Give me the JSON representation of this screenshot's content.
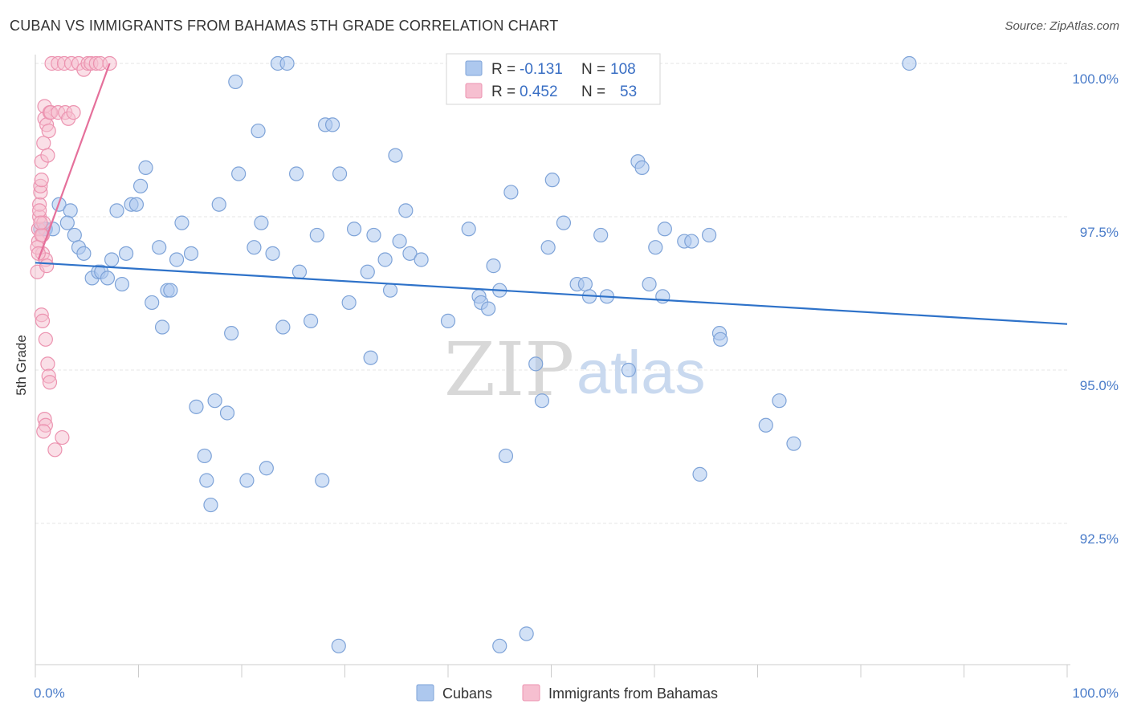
{
  "header": {
    "title": "CUBAN VS IMMIGRANTS FROM BAHAMAS 5TH GRADE CORRELATION CHART",
    "source": "Source: ZipAtlas.com"
  },
  "watermark": {
    "zip": "ZIP",
    "atlas": "atlas"
  },
  "colors": {
    "blue_fill": "#adc8ee",
    "blue_stroke": "#7ea3d8",
    "blue_line": "#2e72c9",
    "pink_fill": "#f6bfd0",
    "pink_stroke": "#ec93b0",
    "pink_line": "#e5709b",
    "grid": "#e5e5e5",
    "axis_text": "#4a7cc9"
  },
  "legend": {
    "rows": [
      {
        "r_label": "R =",
        "r_value": "-0.131",
        "n_label": "N =",
        "n_value": "108"
      },
      {
        "r_label": "R =",
        "r_value": "0.452",
        "n_label": "N =",
        "n_value": "53"
      }
    ]
  },
  "bottom_legend": {
    "cubans": "Cubans",
    "bahamas": "Immigrants from Bahamas"
  },
  "chart_data": {
    "type": "scatter",
    "title": "CUBAN VS IMMIGRANTS FROM BAHAMAS 5TH GRADE CORRELATION CHART",
    "xlabel": "",
    "ylabel": "5th Grade",
    "xlim": [
      0,
      100
    ],
    "ylim": [
      90.0,
      100.4
    ],
    "x_tick_labels": [
      "0.0%",
      "100.0%"
    ],
    "y_ticks": [
      92.5,
      95.0,
      97.5,
      100.0
    ],
    "y_tick_labels": [
      "92.5%",
      "95.0%",
      "97.5%",
      "100.0%"
    ],
    "series": [
      {
        "name": "Cubans",
        "R": -0.131,
        "N": 108,
        "trend": {
          "x": [
            0,
            100
          ],
          "y": [
            96.75,
            95.75
          ]
        },
        "points": [
          [
            0.5,
            97.3
          ],
          [
            0.9,
            97.3
          ],
          [
            1.0,
            97.3
          ],
          [
            1.7,
            97.3
          ],
          [
            2.3,
            97.7
          ],
          [
            3.4,
            97.6
          ],
          [
            3.1,
            97.4
          ],
          [
            3.8,
            97.2
          ],
          [
            4.2,
            97.0
          ],
          [
            4.7,
            96.9
          ],
          [
            5.5,
            96.5
          ],
          [
            6.1,
            96.6
          ],
          [
            6.4,
            96.6
          ],
          [
            7.0,
            96.5
          ],
          [
            7.4,
            96.8
          ],
          [
            7.9,
            97.6
          ],
          [
            8.4,
            96.4
          ],
          [
            8.8,
            96.9
          ],
          [
            9.3,
            97.7
          ],
          [
            9.8,
            97.7
          ],
          [
            10.2,
            98.0
          ],
          [
            10.7,
            98.3
          ],
          [
            11.3,
            96.1
          ],
          [
            12.0,
            97.0
          ],
          [
            12.3,
            95.7
          ],
          [
            12.8,
            96.3
          ],
          [
            13.1,
            96.3
          ],
          [
            13.7,
            96.8
          ],
          [
            14.2,
            97.4
          ],
          [
            15.1,
            96.9
          ],
          [
            15.6,
            94.4
          ],
          [
            16.4,
            93.6
          ],
          [
            16.6,
            93.2
          ],
          [
            17.0,
            92.8
          ],
          [
            17.4,
            94.5
          ],
          [
            17.8,
            97.7
          ],
          [
            18.6,
            94.3
          ],
          [
            19.0,
            95.6
          ],
          [
            19.4,
            99.7
          ],
          [
            19.7,
            98.2
          ],
          [
            20.5,
            93.2
          ],
          [
            21.2,
            97.0
          ],
          [
            21.6,
            98.9
          ],
          [
            21.9,
            97.4
          ],
          [
            22.4,
            93.4
          ],
          [
            23.0,
            96.9
          ],
          [
            23.5,
            100.0
          ],
          [
            24.0,
            95.7
          ],
          [
            24.4,
            100.0
          ],
          [
            25.3,
            98.2
          ],
          [
            25.6,
            96.6
          ],
          [
            26.7,
            95.8
          ],
          [
            27.3,
            97.2
          ],
          [
            27.8,
            93.2
          ],
          [
            28.1,
            99.0
          ],
          [
            28.8,
            99.0
          ],
          [
            29.5,
            98.2
          ],
          [
            30.4,
            96.1
          ],
          [
            30.9,
            97.3
          ],
          [
            32.2,
            96.6
          ],
          [
            32.5,
            95.2
          ],
          [
            32.8,
            97.2
          ],
          [
            33.9,
            96.8
          ],
          [
            34.4,
            96.3
          ],
          [
            34.9,
            98.5
          ],
          [
            35.3,
            97.1
          ],
          [
            35.9,
            97.6
          ],
          [
            36.3,
            96.9
          ],
          [
            37.4,
            96.8
          ],
          [
            40.0,
            95.8
          ],
          [
            42.0,
            97.3
          ],
          [
            43.0,
            96.2
          ],
          [
            43.2,
            96.1
          ],
          [
            43.9,
            96.0
          ],
          [
            44.4,
            96.7
          ],
          [
            45.0,
            96.3
          ],
          [
            45.6,
            93.6
          ],
          [
            46.1,
            97.9
          ],
          [
            48.5,
            95.1
          ],
          [
            49.1,
            94.5
          ],
          [
            49.7,
            97.0
          ],
          [
            50.1,
            98.1
          ],
          [
            51.2,
            97.4
          ],
          [
            52.5,
            96.4
          ],
          [
            53.3,
            96.4
          ],
          [
            53.7,
            96.2
          ],
          [
            54.8,
            97.2
          ],
          [
            55.4,
            96.2
          ],
          [
            57.5,
            95.0
          ],
          [
            58.4,
            98.4
          ],
          [
            58.8,
            98.3
          ],
          [
            59.5,
            96.4
          ],
          [
            60.1,
            97.0
          ],
          [
            60.8,
            96.2
          ],
          [
            61.0,
            97.3
          ],
          [
            62.9,
            97.1
          ],
          [
            63.6,
            97.1
          ],
          [
            64.4,
            93.3
          ],
          [
            65.3,
            97.2
          ],
          [
            66.3,
            95.6
          ],
          [
            66.4,
            95.5
          ],
          [
            70.8,
            94.1
          ],
          [
            72.1,
            94.5
          ],
          [
            73.5,
            93.8
          ],
          [
            84.7,
            100.0
          ],
          [
            29.4,
            90.5
          ],
          [
            45.0,
            90.5
          ],
          [
            47.6,
            90.7
          ]
        ]
      },
      {
        "name": "Immigrants from Bahamas",
        "R": 0.452,
        "N": 53,
        "trend": {
          "x": [
            0.3,
            7.2
          ],
          "y": [
            96.8,
            100.0
          ]
        },
        "points": [
          [
            0.2,
            96.6
          ],
          [
            0.3,
            97.1
          ],
          [
            0.3,
            97.3
          ],
          [
            0.4,
            97.5
          ],
          [
            0.4,
            97.7
          ],
          [
            0.5,
            97.9
          ],
          [
            0.5,
            98.0
          ],
          [
            0.6,
            98.1
          ],
          [
            0.6,
            98.4
          ],
          [
            0.7,
            96.9
          ],
          [
            0.7,
            97.2
          ],
          [
            0.8,
            97.4
          ],
          [
            0.8,
            98.7
          ],
          [
            0.9,
            99.1
          ],
          [
            0.9,
            99.3
          ],
          [
            1.0,
            96.8
          ],
          [
            1.1,
            96.7
          ],
          [
            1.1,
            99.0
          ],
          [
            1.2,
            98.5
          ],
          [
            1.3,
            98.9
          ],
          [
            1.4,
            99.2
          ],
          [
            1.5,
            99.2
          ],
          [
            0.6,
            95.9
          ],
          [
            0.7,
            95.8
          ],
          [
            1.0,
            95.5
          ],
          [
            1.2,
            95.1
          ],
          [
            1.3,
            94.9
          ],
          [
            1.4,
            94.8
          ],
          [
            0.9,
            94.2
          ],
          [
            1.0,
            94.1
          ],
          [
            0.8,
            94.0
          ],
          [
            1.9,
            93.7
          ],
          [
            2.6,
            93.9
          ],
          [
            2.2,
            99.2
          ],
          [
            2.9,
            99.2
          ],
          [
            3.2,
            99.1
          ],
          [
            3.7,
            99.2
          ],
          [
            1.6,
            100.0
          ],
          [
            2.2,
            100.0
          ],
          [
            2.8,
            100.0
          ],
          [
            3.5,
            100.0
          ],
          [
            4.2,
            100.0
          ],
          [
            4.7,
            99.9
          ],
          [
            5.1,
            100.0
          ],
          [
            5.4,
            100.0
          ],
          [
            5.9,
            100.0
          ],
          [
            6.3,
            100.0
          ],
          [
            7.2,
            100.0
          ],
          [
            0.4,
            97.6
          ],
          [
            0.6,
            97.2
          ],
          [
            0.2,
            97.0
          ],
          [
            0.3,
            96.9
          ],
          [
            0.5,
            97.4
          ]
        ]
      }
    ]
  }
}
